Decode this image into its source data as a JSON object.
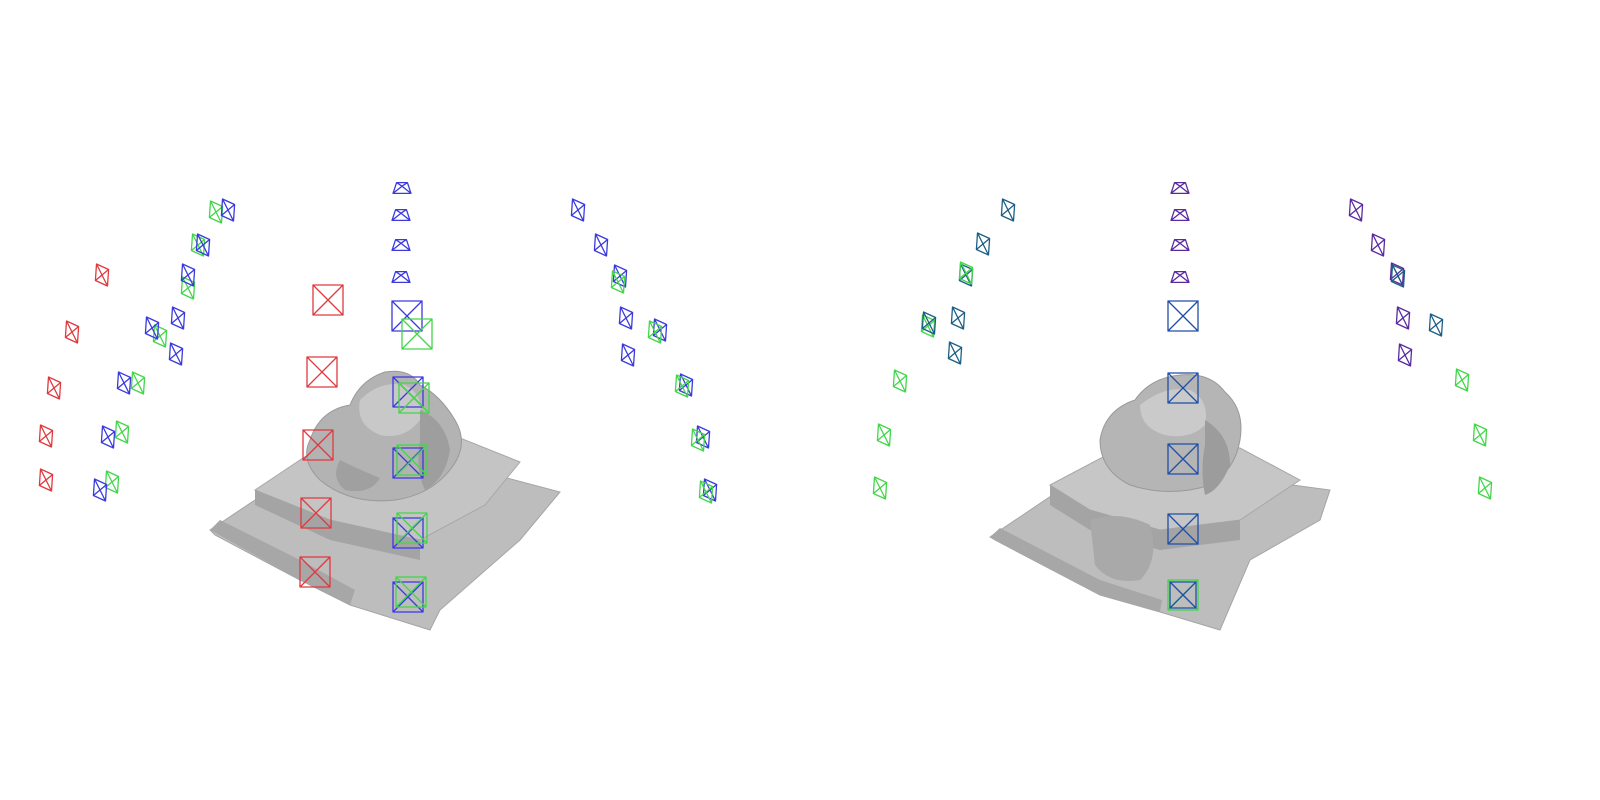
{
  "colors": {
    "background": "#ffffff",
    "mesh": "#b5b5b5",
    "mesh_shade": "#9a9a9a",
    "mesh_light": "#cfcfcf",
    "cam_red": "#e0393e",
    "cam_green": "#43d64a",
    "cam_blue": "#3a3ae0",
    "cam_navy": "#1f4fa8",
    "cam_teal": "#1c5f86",
    "cam_purple": "#5a2aa0"
  },
  "panels": [
    {
      "id": "left",
      "description_key": "reconstruction-with-pose-noise",
      "camera_sets": [
        "red",
        "green",
        "blue"
      ]
    },
    {
      "id": "right",
      "description_key": "reconstruction-refined",
      "camera_sets": [
        "green",
        "blue",
        "purple"
      ]
    }
  ],
  "icons": {
    "camera": "camera-frustum-icon",
    "mesh": "sculpture-mesh"
  }
}
